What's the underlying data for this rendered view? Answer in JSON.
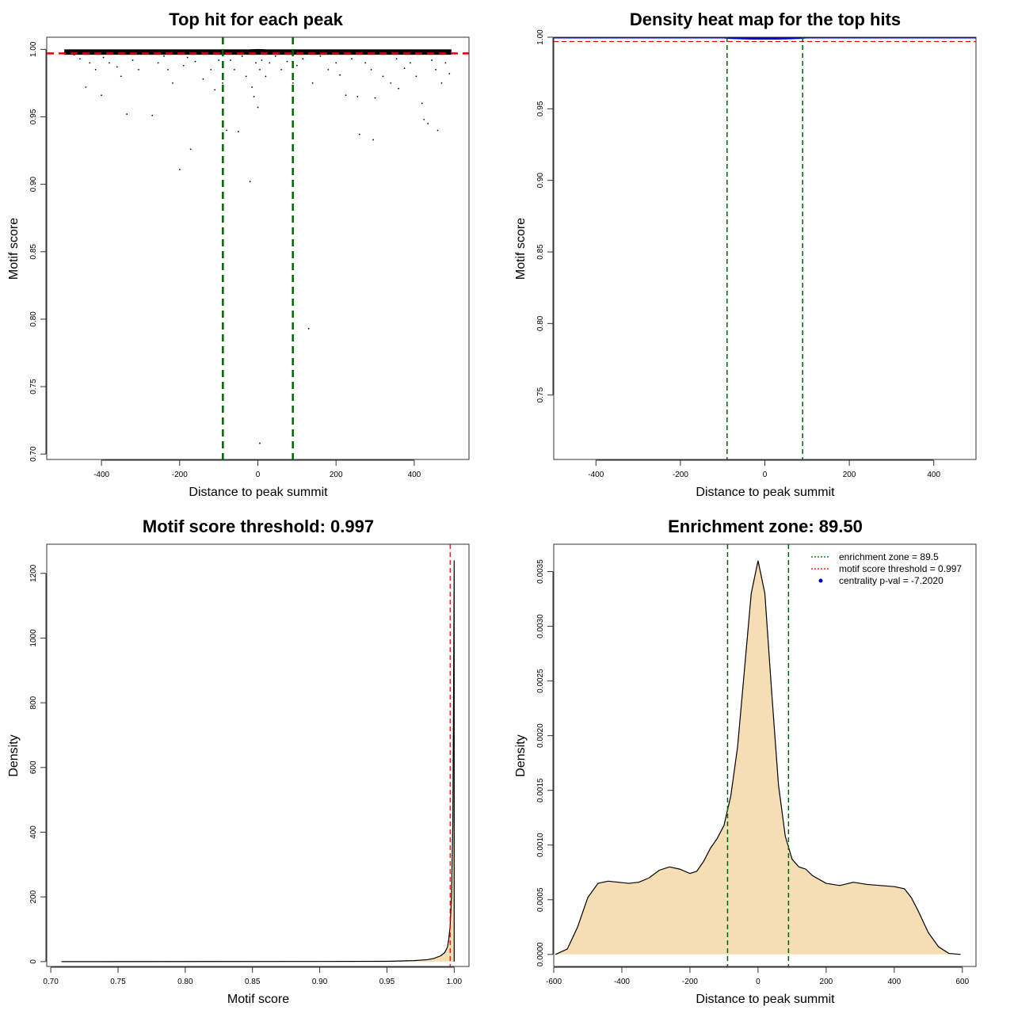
{
  "chart_data": [
    {
      "type": "scatter",
      "title": "Top hit for each peak",
      "xlabel": "Distance to peak summit",
      "ylabel": "Motif score",
      "xlim": [
        -540,
        540
      ],
      "ylim": [
        0.696,
        1.009
      ],
      "xticks": [
        -400,
        -200,
        0,
        200,
        400
      ],
      "xtick_labels": [
        "-400",
        "-200",
        "0",
        "200",
        "400"
      ],
      "yticks": [
        0.7,
        0.75,
        0.8,
        0.85,
        0.9,
        0.95,
        1.0
      ],
      "ytick_labels": [
        "0.70",
        "0.75",
        "0.80",
        "0.85",
        "0.90",
        "0.95",
        "1.00"
      ],
      "grid": false,
      "threshold_y": 0.997,
      "zone_x": [
        -89.5,
        89.5
      ],
      "line_colors": {
        "threshold": "#dd0000",
        "zone": "#006400"
      },
      "points": [
        [
          -490,
          0.998
        ],
        [
          -470,
          0.996
        ],
        [
          -455,
          0.993
        ],
        [
          -440,
          0.972
        ],
        [
          -430,
          0.99
        ],
        [
          -415,
          0.985
        ],
        [
          -400,
          0.966
        ],
        [
          -395,
          0.994
        ],
        [
          -380,
          0.99
        ],
        [
          -360,
          0.987
        ],
        [
          -350,
          0.98
        ],
        [
          -335,
          0.952
        ],
        [
          -320,
          0.992
        ],
        [
          -305,
          0.985
        ],
        [
          -290,
          0.997
        ],
        [
          -270,
          0.951
        ],
        [
          -255,
          0.99
        ],
        [
          -240,
          0.995
        ],
        [
          -230,
          0.985
        ],
        [
          -218,
          0.975
        ],
        [
          -200,
          0.911
        ],
        [
          -190,
          0.988
        ],
        [
          -180,
          0.994
        ],
        [
          -172,
          0.926
        ],
        [
          -160,
          0.991
        ],
        [
          -140,
          0.978
        ],
        [
          -120,
          0.985
        ],
        [
          -110,
          0.97
        ],
        [
          -100,
          0.992
        ],
        [
          -90,
          0.975
        ],
        [
          -80,
          0.94
        ],
        [
          -70,
          0.992
        ],
        [
          -60,
          0.985
        ],
        [
          -50,
          0.939
        ],
        [
          -40,
          0.995
        ],
        [
          -30,
          0.98
        ],
        [
          -20,
          0.902
        ],
        [
          -15,
          0.972
        ],
        [
          -10,
          0.965
        ],
        [
          -5,
          0.99
        ],
        [
          0,
          0.957
        ],
        [
          5,
          0.985
        ],
        [
          10,
          0.992
        ],
        [
          20,
          0.98
        ],
        [
          30,
          0.99
        ],
        [
          45,
          0.995
        ],
        [
          60,
          0.985
        ],
        [
          75,
          0.991
        ],
        [
          90,
          0.975
        ],
        [
          100,
          0.988
        ],
        [
          115,
          0.993
        ],
        [
          130,
          0.793
        ],
        [
          140,
          0.975
        ],
        [
          160,
          0.995
        ],
        [
          180,
          0.985
        ],
        [
          200,
          0.99
        ],
        [
          210,
          0.981
        ],
        [
          225,
          0.966
        ],
        [
          240,
          0.993
        ],
        [
          255,
          0.965
        ],
        [
          260,
          0.937
        ],
        [
          275,
          0.99
        ],
        [
          290,
          0.985
        ],
        [
          295,
          0.933
        ],
        [
          300,
          0.964
        ],
        [
          320,
          0.98
        ],
        [
          340,
          0.975
        ],
        [
          355,
          0.993
        ],
        [
          360,
          0.971
        ],
        [
          375,
          0.986
        ],
        [
          390,
          0.99
        ],
        [
          405,
          0.98
        ],
        [
          420,
          0.96
        ],
        [
          425,
          0.948
        ],
        [
          435,
          0.945
        ],
        [
          445,
          0.992
        ],
        [
          455,
          0.985
        ],
        [
          460,
          0.94
        ],
        [
          470,
          0.975
        ],
        [
          480,
          0.99
        ],
        [
          490,
          0.982
        ],
        [
          5,
          0.708
        ]
      ]
    },
    {
      "type": "heatmap",
      "title": "Density heat map for the top hits",
      "xlabel": "Distance to peak summit",
      "ylabel": "Motif score",
      "xlim": [
        -500,
        500
      ],
      "ylim": [
        0.705,
        1.0
      ],
      "xticks": [
        -400,
        -200,
        0,
        200,
        400
      ],
      "xtick_labels": [
        "-400",
        "-200",
        "0",
        "200",
        "400"
      ],
      "yticks": [
        0.75,
        0.8,
        0.85,
        0.9,
        0.95,
        1.0
      ],
      "ytick_labels": [
        "0.75",
        "0.80",
        "0.85",
        "0.90",
        "0.95",
        "1.00"
      ],
      "grid": false,
      "threshold_y": 0.997,
      "zone_x": [
        -89.5,
        89.5
      ],
      "hotspot": {
        "x_range": [
          -100,
          100
        ],
        "y": 1.0
      },
      "line_colors": {
        "threshold": "#dd0000",
        "zone": "#006400",
        "hotspot": "#0000cc"
      }
    },
    {
      "type": "area",
      "title": "Motif score threshold: 0.997",
      "xlabel": "Motif score",
      "ylabel": "Density",
      "xlim": [
        0.697,
        1.011
      ],
      "ylim": [
        -15,
        1290
      ],
      "xticks": [
        0.7,
        0.75,
        0.8,
        0.85,
        0.9,
        0.95,
        1.0
      ],
      "xtick_labels": [
        "0.70",
        "0.75",
        "0.80",
        "0.85",
        "0.90",
        "0.95",
        "1.00"
      ],
      "yticks": [
        0,
        200,
        400,
        600,
        800,
        1000,
        1200
      ],
      "ytick_labels": [
        "0",
        "200",
        "400",
        "600",
        "800",
        "1000",
        "1200"
      ],
      "grid": false,
      "threshold_x": 0.997,
      "fill_color": "#f5deb3",
      "line_colors": {
        "threshold": "#dd0000"
      },
      "x": [
        0.708,
        0.9,
        0.95,
        0.97,
        0.98,
        0.985,
        0.99,
        0.993,
        0.995,
        0.996,
        0.997,
        0.998,
        0.999,
        0.9995,
        1.0,
        1.0
      ],
      "y": [
        0,
        0.5,
        1,
        3,
        6,
        10,
        18,
        28,
        45,
        70,
        110,
        200,
        430,
        800,
        1240,
        0
      ]
    },
    {
      "type": "area",
      "title": "Enrichment zone: 89.50",
      "xlabel": "Distance to peak summit",
      "ylabel": "Density",
      "xlim": [
        -600,
        640
      ],
      "ylim": [
        -0.00011,
        0.00375
      ],
      "xticks": [
        -600,
        -400,
        -200,
        0,
        200,
        400,
        600
      ],
      "xtick_labels": [
        "-600",
        "-400",
        "-200",
        "0",
        "200",
        "400",
        "600"
      ],
      "yticks": [
        0.0,
        0.0005,
        0.001,
        0.0015,
        0.002,
        0.0025,
        0.003,
        0.0035
      ],
      "ytick_labels": [
        "0.0000",
        "0.0005",
        "0.0010",
        "0.0015",
        "0.0020",
        "0.0025",
        "0.0030",
        "0.0035"
      ],
      "grid": false,
      "zone_x": [
        -89.5,
        89.5
      ],
      "fill_color": "#f5deb3",
      "line_colors": {
        "zone": "#006400"
      },
      "x": [
        -595,
        -560,
        -530,
        -500,
        -470,
        -440,
        -410,
        -380,
        -350,
        -320,
        -290,
        -260,
        -230,
        -200,
        -180,
        -160,
        -140,
        -120,
        -100,
        -80,
        -60,
        -40,
        -20,
        0,
        20,
        40,
        60,
        80,
        100,
        120,
        140,
        160,
        200,
        240,
        280,
        320,
        360,
        400,
        430,
        450,
        470,
        500,
        530,
        560,
        595
      ],
      "y": [
        0.0,
        5e-05,
        0.00025,
        0.00052,
        0.00065,
        0.00067,
        0.00066,
        0.00065,
        0.00066,
        0.0007,
        0.00077,
        0.0008,
        0.00078,
        0.00074,
        0.00076,
        0.00085,
        0.00097,
        0.00106,
        0.00118,
        0.00145,
        0.0019,
        0.0026,
        0.0033,
        0.0036,
        0.0033,
        0.0024,
        0.00155,
        0.00108,
        0.00087,
        0.0008,
        0.00078,
        0.00072,
        0.00065,
        0.00063,
        0.00066,
        0.00064,
        0.00063,
        0.00062,
        0.0006,
        0.00052,
        0.0004,
        0.0002,
        7e-05,
        1e-05,
        0.0
      ],
      "legend": {
        "placement": "top-right",
        "entries": [
          {
            "label": "enrichment zone = 89.5",
            "color": "#006400",
            "style": "dotted-line"
          },
          {
            "label": "motif score threshold = 0.997",
            "color": "#dd0000",
            "style": "dotted-line"
          },
          {
            "label": "centrality p-val = -7.2020",
            "color": "#0000cc",
            "style": "point"
          }
        ]
      }
    }
  ]
}
